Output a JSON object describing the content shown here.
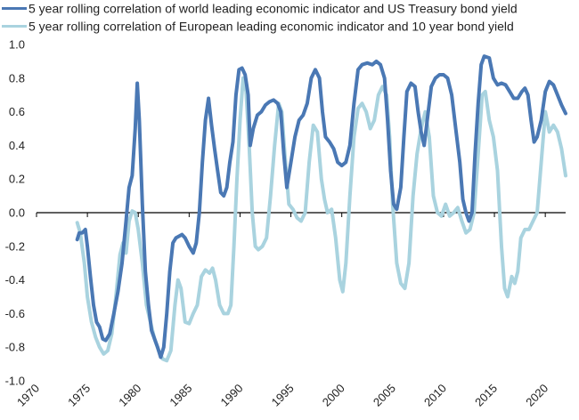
{
  "chart_data": {
    "type": "line",
    "title": "",
    "xlabel": "",
    "ylabel": "",
    "xlim": [
      1970,
      2022
    ],
    "ylim": [
      -1.0,
      1.0
    ],
    "x_ticks": [
      "1970",
      "1975",
      "1980",
      "1985",
      "1990",
      "1995",
      "2000",
      "2005",
      "2010",
      "2015",
      "2020"
    ],
    "y_ticks": [
      "1.0",
      "0.8",
      "0.6",
      "0.4",
      "0.2",
      "0.0",
      "-0.2",
      "-0.4",
      "-0.6",
      "-0.8",
      "-1.0"
    ],
    "grid": false,
    "legend_position": "top-left",
    "series": [
      {
        "name": "5 year rolling correlation of world leading economic indicator and US Treasury bond yield",
        "color": "#4a78b4",
        "points": [
          [
            1974.0,
            -0.16
          ],
          [
            1974.2,
            -0.12
          ],
          [
            1974.5,
            -0.12
          ],
          [
            1974.8,
            -0.1
          ],
          [
            1975.0,
            -0.2
          ],
          [
            1975.3,
            -0.38
          ],
          [
            1975.6,
            -0.55
          ],
          [
            1975.9,
            -0.65
          ],
          [
            1976.2,
            -0.68
          ],
          [
            1976.5,
            -0.75
          ],
          [
            1976.8,
            -0.76
          ],
          [
            1977.2,
            -0.72
          ],
          [
            1977.6,
            -0.6
          ],
          [
            1978.0,
            -0.47
          ],
          [
            1978.4,
            -0.3
          ],
          [
            1978.8,
            -0.05
          ],
          [
            1979.1,
            0.15
          ],
          [
            1979.4,
            0.22
          ],
          [
            1979.7,
            0.5
          ],
          [
            1979.9,
            0.77
          ],
          [
            1980.1,
            0.55
          ],
          [
            1980.4,
            0.05
          ],
          [
            1980.7,
            -0.35
          ],
          [
            1981.0,
            -0.55
          ],
          [
            1981.3,
            -0.7
          ],
          [
            1981.6,
            -0.75
          ],
          [
            1981.9,
            -0.8
          ],
          [
            1982.2,
            -0.86
          ],
          [
            1982.5,
            -0.8
          ],
          [
            1982.8,
            -0.6
          ],
          [
            1983.1,
            -0.35
          ],
          [
            1983.4,
            -0.18
          ],
          [
            1983.7,
            -0.15
          ],
          [
            1984.0,
            -0.14
          ],
          [
            1984.3,
            -0.13
          ],
          [
            1984.6,
            -0.15
          ],
          [
            1985.0,
            -0.2
          ],
          [
            1985.4,
            -0.24
          ],
          [
            1985.7,
            -0.18
          ],
          [
            1986.0,
            0.0
          ],
          [
            1986.3,
            0.3
          ],
          [
            1986.6,
            0.55
          ],
          [
            1986.9,
            0.68
          ],
          [
            1987.2,
            0.52
          ],
          [
            1987.5,
            0.38
          ],
          [
            1987.8,
            0.25
          ],
          [
            1988.1,
            0.12
          ],
          [
            1988.4,
            0.1
          ],
          [
            1988.7,
            0.15
          ],
          [
            1989.0,
            0.3
          ],
          [
            1989.3,
            0.42
          ],
          [
            1989.6,
            0.7
          ],
          [
            1989.9,
            0.85
          ],
          [
            1990.2,
            0.86
          ],
          [
            1990.5,
            0.82
          ],
          [
            1990.8,
            0.7
          ],
          [
            1991.0,
            0.4
          ],
          [
            1991.3,
            0.5
          ],
          [
            1991.7,
            0.58
          ],
          [
            1992.1,
            0.6
          ],
          [
            1992.5,
            0.64
          ],
          [
            1992.9,
            0.66
          ],
          [
            1993.3,
            0.67
          ],
          [
            1993.7,
            0.65
          ],
          [
            1994.0,
            0.6
          ],
          [
            1994.3,
            0.35
          ],
          [
            1994.6,
            0.15
          ],
          [
            1995.0,
            0.3
          ],
          [
            1995.4,
            0.45
          ],
          [
            1995.8,
            0.55
          ],
          [
            1996.2,
            0.58
          ],
          [
            1996.6,
            0.65
          ],
          [
            1997.0,
            0.8
          ],
          [
            1997.4,
            0.85
          ],
          [
            1997.8,
            0.8
          ],
          [
            1998.1,
            0.6
          ],
          [
            1998.4,
            0.45
          ],
          [
            1998.8,
            0.42
          ],
          [
            1999.2,
            0.38
          ],
          [
            1999.6,
            0.3
          ],
          [
            2000.0,
            0.28
          ],
          [
            2000.4,
            0.3
          ],
          [
            2000.8,
            0.4
          ],
          [
            2001.2,
            0.65
          ],
          [
            2001.6,
            0.85
          ],
          [
            2002.0,
            0.88
          ],
          [
            2002.5,
            0.89
          ],
          [
            2003.0,
            0.88
          ],
          [
            2003.4,
            0.9
          ],
          [
            2003.8,
            0.88
          ],
          [
            2004.2,
            0.8
          ],
          [
            2004.5,
            0.55
          ],
          [
            2004.8,
            0.25
          ],
          [
            2005.1,
            0.05
          ],
          [
            2005.4,
            0.02
          ],
          [
            2005.8,
            0.15
          ],
          [
            2006.1,
            0.45
          ],
          [
            2006.4,
            0.72
          ],
          [
            2006.8,
            0.77
          ],
          [
            2007.2,
            0.75
          ],
          [
            2007.5,
            0.6
          ],
          [
            2007.8,
            0.48
          ],
          [
            2008.1,
            0.4
          ],
          [
            2008.4,
            0.55
          ],
          [
            2008.8,
            0.75
          ],
          [
            2009.2,
            0.8
          ],
          [
            2009.6,
            0.82
          ],
          [
            2010.0,
            0.82
          ],
          [
            2010.4,
            0.8
          ],
          [
            2010.8,
            0.7
          ],
          [
            2011.2,
            0.5
          ],
          [
            2011.6,
            0.3
          ],
          [
            2011.9,
            0.08
          ],
          [
            2012.2,
            0.0
          ],
          [
            2012.5,
            -0.05
          ],
          [
            2012.8,
            0.0
          ],
          [
            2013.1,
            0.35
          ],
          [
            2013.4,
            0.65
          ],
          [
            2013.7,
            0.88
          ],
          [
            2014.0,
            0.93
          ],
          [
            2014.5,
            0.92
          ],
          [
            2014.9,
            0.8
          ],
          [
            2015.3,
            0.76
          ],
          [
            2015.7,
            0.77
          ],
          [
            2016.1,
            0.76
          ],
          [
            2016.5,
            0.72
          ],
          [
            2016.9,
            0.68
          ],
          [
            2017.3,
            0.68
          ],
          [
            2017.7,
            0.72
          ],
          [
            2018.0,
            0.74
          ],
          [
            2018.3,
            0.7
          ],
          [
            2018.6,
            0.55
          ],
          [
            2018.9,
            0.42
          ],
          [
            2019.2,
            0.45
          ],
          [
            2019.6,
            0.55
          ],
          [
            2020.0,
            0.72
          ],
          [
            2020.4,
            0.78
          ],
          [
            2020.8,
            0.76
          ],
          [
            2021.2,
            0.7
          ],
          [
            2021.6,
            0.64
          ],
          [
            2022.0,
            0.59
          ]
        ]
      },
      {
        "name": "5 year rolling correlation of European leading economic indicator and 10 year bond yield",
        "color": "#a9d3df",
        "points": [
          [
            1974.0,
            -0.06
          ],
          [
            1974.3,
            -0.12
          ],
          [
            1974.7,
            -0.3
          ],
          [
            1975.0,
            -0.5
          ],
          [
            1975.4,
            -0.65
          ],
          [
            1975.8,
            -0.74
          ],
          [
            1976.2,
            -0.8
          ],
          [
            1976.6,
            -0.84
          ],
          [
            1977.0,
            -0.82
          ],
          [
            1977.4,
            -0.72
          ],
          [
            1977.8,
            -0.5
          ],
          [
            1978.2,
            -0.25
          ],
          [
            1978.5,
            -0.18
          ],
          [
            1978.8,
            -0.24
          ],
          [
            1979.1,
            -0.05
          ],
          [
            1979.4,
            0.01
          ],
          [
            1979.7,
            0.0
          ],
          [
            1980.0,
            -0.1
          ],
          [
            1980.4,
            -0.3
          ],
          [
            1980.8,
            -0.55
          ],
          [
            1981.2,
            -0.65
          ],
          [
            1981.6,
            -0.75
          ],
          [
            1982.0,
            -0.82
          ],
          [
            1982.4,
            -0.87
          ],
          [
            1982.8,
            -0.88
          ],
          [
            1983.2,
            -0.82
          ],
          [
            1983.6,
            -0.55
          ],
          [
            1983.9,
            -0.4
          ],
          [
            1984.2,
            -0.45
          ],
          [
            1984.6,
            -0.65
          ],
          [
            1985.0,
            -0.66
          ],
          [
            1985.4,
            -0.6
          ],
          [
            1985.8,
            -0.55
          ],
          [
            1986.2,
            -0.38
          ],
          [
            1986.6,
            -0.34
          ],
          [
            1987.0,
            -0.36
          ],
          [
            1987.3,
            -0.33
          ],
          [
            1987.6,
            -0.4
          ],
          [
            1988.0,
            -0.55
          ],
          [
            1988.4,
            -0.6
          ],
          [
            1988.8,
            -0.6
          ],
          [
            1989.1,
            -0.55
          ],
          [
            1989.4,
            -0.2
          ],
          [
            1989.7,
            0.2
          ],
          [
            1990.0,
            0.55
          ],
          [
            1990.3,
            0.8
          ],
          [
            1990.6,
            0.72
          ],
          [
            1990.9,
            0.4
          ],
          [
            1991.2,
            0.0
          ],
          [
            1991.5,
            -0.2
          ],
          [
            1991.8,
            -0.22
          ],
          [
            1992.2,
            -0.2
          ],
          [
            1992.6,
            -0.15
          ],
          [
            1993.0,
            0.1
          ],
          [
            1993.4,
            0.4
          ],
          [
            1993.8,
            0.65
          ],
          [
            1994.1,
            0.6
          ],
          [
            1994.4,
            0.35
          ],
          [
            1994.8,
            0.05
          ],
          [
            1995.2,
            0.02
          ],
          [
            1995.6,
            -0.03
          ],
          [
            1996.0,
            -0.05
          ],
          [
            1996.4,
            0.0
          ],
          [
            1996.8,
            0.3
          ],
          [
            1997.2,
            0.52
          ],
          [
            1997.6,
            0.48
          ],
          [
            1998.0,
            0.2
          ],
          [
            1998.3,
            0.08
          ],
          [
            1998.6,
            0.0
          ],
          [
            1999.0,
            0.02
          ],
          [
            1999.4,
            -0.15
          ],
          [
            1999.8,
            -0.4
          ],
          [
            2000.1,
            -0.47
          ],
          [
            2000.4,
            -0.3
          ],
          [
            2000.8,
            0.1
          ],
          [
            2001.2,
            0.45
          ],
          [
            2001.6,
            0.62
          ],
          [
            2002.0,
            0.65
          ],
          [
            2002.4,
            0.6
          ],
          [
            2002.8,
            0.5
          ],
          [
            2003.2,
            0.55
          ],
          [
            2003.6,
            0.7
          ],
          [
            2004.0,
            0.75
          ],
          [
            2004.4,
            0.7
          ],
          [
            2004.7,
            0.45
          ],
          [
            2005.0,
            0.05
          ],
          [
            2005.4,
            -0.3
          ],
          [
            2005.8,
            -0.42
          ],
          [
            2006.2,
            -0.45
          ],
          [
            2006.6,
            -0.3
          ],
          [
            2007.0,
            0.1
          ],
          [
            2007.4,
            0.35
          ],
          [
            2007.8,
            0.5
          ],
          [
            2008.2,
            0.6
          ],
          [
            2008.6,
            0.45
          ],
          [
            2009.0,
            0.1
          ],
          [
            2009.4,
            0.0
          ],
          [
            2009.8,
            -0.02
          ],
          [
            2010.2,
            0.05
          ],
          [
            2010.6,
            -0.02
          ],
          [
            2011.0,
            0.0
          ],
          [
            2011.4,
            0.03
          ],
          [
            2011.8,
            -0.05
          ],
          [
            2012.2,
            -0.12
          ],
          [
            2012.6,
            -0.1
          ],
          [
            2013.0,
            0.0
          ],
          [
            2013.4,
            0.35
          ],
          [
            2013.8,
            0.7
          ],
          [
            2014.1,
            0.72
          ],
          [
            2014.5,
            0.55
          ],
          [
            2014.9,
            0.45
          ],
          [
            2015.3,
            0.25
          ],
          [
            2015.7,
            -0.2
          ],
          [
            2016.0,
            -0.45
          ],
          [
            2016.3,
            -0.5
          ],
          [
            2016.7,
            -0.38
          ],
          [
            2017.0,
            -0.42
          ],
          [
            2017.3,
            -0.35
          ],
          [
            2017.6,
            -0.15
          ],
          [
            2018.0,
            -0.1
          ],
          [
            2018.4,
            -0.1
          ],
          [
            2018.8,
            -0.05
          ],
          [
            2019.2,
            0.0
          ],
          [
            2019.6,
            0.3
          ],
          [
            2020.0,
            0.6
          ],
          [
            2020.4,
            0.48
          ],
          [
            2020.8,
            0.52
          ],
          [
            2021.2,
            0.48
          ],
          [
            2021.6,
            0.38
          ],
          [
            2022.0,
            0.22
          ]
        ]
      }
    ]
  }
}
